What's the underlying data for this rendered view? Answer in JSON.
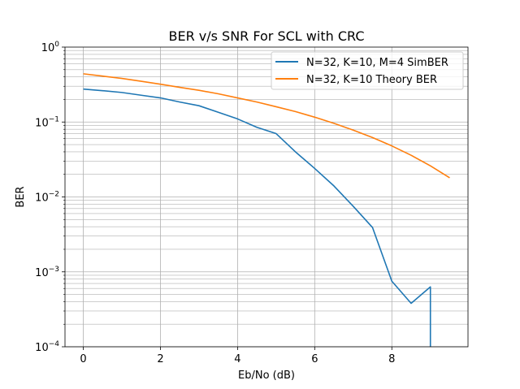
{
  "chart_data": {
    "type": "line",
    "title": "BER v/s SNR For SCL with CRC",
    "xlabel": "Eb/No (dB)",
    "ylabel": "BER",
    "xlim": [
      -0.475,
      9.975
    ],
    "ylim": [
      0.0001,
      1
    ],
    "yscale": "log",
    "grid": true,
    "legend_position": "top-right",
    "x_ticks": [
      0,
      2,
      4,
      6,
      8
    ],
    "x_tick_labels": [
      "0",
      "2",
      "4",
      "6",
      "8"
    ],
    "y_ticks": [
      0.0001,
      0.001,
      0.01,
      0.1,
      1
    ],
    "y_tick_labels": [
      {
        "base": "10",
        "exp": "−4"
      },
      {
        "base": "10",
        "exp": "−3"
      },
      {
        "base": "10",
        "exp": "−2"
      },
      {
        "base": "10",
        "exp": "−1"
      },
      {
        "base": "10",
        "exp": "0"
      }
    ],
    "series": [
      {
        "name": "N=32, K=10, M=4 SimBER",
        "color": "#1f77b4",
        "x": [
          0,
          0.5,
          1,
          1.5,
          2,
          2.5,
          3,
          3.5,
          4,
          4.5,
          5,
          5.5,
          6,
          6.5,
          7,
          7.5,
          8,
          8.5,
          9,
          9
        ],
        "y": [
          0.275,
          0.262,
          0.248,
          0.228,
          0.21,
          0.185,
          0.165,
          0.135,
          0.11,
          0.085,
          0.07,
          0.04,
          0.024,
          0.014,
          0.0075,
          0.0039,
          0.00075,
          0.00038,
          0.00063,
          0.0001
        ]
      },
      {
        "name": "N=32, K=10 Theory BER",
        "color": "#ff7f0e",
        "x": [
          0,
          0.5,
          1,
          1.5,
          2,
          2.5,
          3,
          3.5,
          4,
          4.5,
          5,
          5.5,
          6,
          6.5,
          7,
          7.5,
          8,
          8.5,
          9,
          9.5
        ],
        "y": [
          0.44,
          0.41,
          0.382,
          0.35,
          0.32,
          0.29,
          0.265,
          0.238,
          0.21,
          0.185,
          0.16,
          0.138,
          0.116,
          0.096,
          0.078,
          0.062,
          0.048,
          0.036,
          0.026,
          0.018
        ]
      }
    ]
  }
}
